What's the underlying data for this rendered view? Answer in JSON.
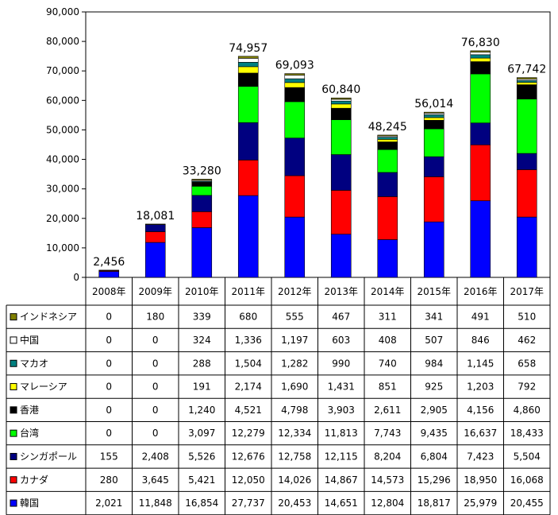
{
  "chart_data": {
    "type": "bar",
    "stacked": true,
    "categories": [
      "2008年",
      "2009年",
      "2010年",
      "2011年",
      "2012年",
      "2013年",
      "2014年",
      "2015年",
      "2016年",
      "2017年"
    ],
    "totals": [
      "2,456",
      "18,081",
      "33,280",
      "74,957",
      "69,093",
      "60,840",
      "48,245",
      "56,014",
      "76,830",
      "67,742"
    ],
    "ylim": [
      0,
      90000
    ],
    "yticks": [
      "0",
      "10,000",
      "20,000",
      "30,000",
      "40,000",
      "50,000",
      "60,000",
      "70,000",
      "80,000",
      "90,000"
    ],
    "grid": false,
    "legend": "data-table-left",
    "series": [
      {
        "name": "韓国",
        "color": "#0000FF",
        "values": [
          2021,
          11848,
          16854,
          27737,
          20453,
          14651,
          12804,
          18817,
          25979,
          20455
        ],
        "labels": [
          "2,021",
          "11,848",
          "16,854",
          "27,737",
          "20,453",
          "14,651",
          "12,804",
          "18,817",
          "25,979",
          "20,455"
        ]
      },
      {
        "name": "カナダ",
        "color": "#FF0000",
        "values": [
          280,
          3645,
          5421,
          12050,
          14026,
          14867,
          14573,
          15296,
          18950,
          16068
        ],
        "labels": [
          "280",
          "3,645",
          "5,421",
          "12,050",
          "14,026",
          "14,867",
          "14,573",
          "15,296",
          "18,950",
          "16,068"
        ]
      },
      {
        "name": "シンガポール",
        "color": "#000080",
        "values": [
          155,
          2408,
          5526,
          12676,
          12758,
          12115,
          8204,
          6804,
          7423,
          5504
        ],
        "labels": [
          "155",
          "2,408",
          "5,526",
          "12,676",
          "12,758",
          "12,115",
          "8,204",
          "6,804",
          "7,423",
          "5,504"
        ]
      },
      {
        "name": "台湾",
        "color": "#00FF00",
        "values": [
          0,
          0,
          3097,
          12279,
          12334,
          11813,
          7743,
          9435,
          16637,
          18433
        ],
        "labels": [
          "0",
          "0",
          "3,097",
          "12,279",
          "12,334",
          "11,813",
          "7,743",
          "9,435",
          "16,637",
          "18,433"
        ]
      },
      {
        "name": "香港",
        "color": "#000000",
        "values": [
          0,
          0,
          1240,
          4521,
          4798,
          3903,
          2611,
          2905,
          4156,
          4860
        ],
        "labels": [
          "0",
          "0",
          "1,240",
          "4,521",
          "4,798",
          "3,903",
          "2,611",
          "2,905",
          "4,156",
          "4,860"
        ]
      },
      {
        "name": "マレーシア",
        "color": "#FFFF00",
        "values": [
          0,
          0,
          191,
          2174,
          1690,
          1431,
          851,
          925,
          1203,
          792
        ],
        "labels": [
          "0",
          "0",
          "191",
          "2,174",
          "1,690",
          "1,431",
          "851",
          "925",
          "1,203",
          "792"
        ]
      },
      {
        "name": "マカオ",
        "color": "#008080",
        "values": [
          0,
          0,
          288,
          1504,
          1282,
          990,
          740,
          984,
          1145,
          658
        ],
        "labels": [
          "0",
          "0",
          "288",
          "1,504",
          "1,282",
          "990",
          "740",
          "984",
          "1,145",
          "658"
        ]
      },
      {
        "name": "中国",
        "color": "#FFFFFF",
        "values": [
          0,
          0,
          324,
          1336,
          1197,
          603,
          408,
          507,
          846,
          462
        ],
        "labels": [
          "0",
          "0",
          "324",
          "1,336",
          "1,197",
          "603",
          "408",
          "507",
          "846",
          "462"
        ]
      },
      {
        "name": "インドネシア",
        "color": "#808000",
        "values": [
          0,
          180,
          339,
          680,
          555,
          467,
          311,
          341,
          491,
          510
        ],
        "labels": [
          "0",
          "180",
          "339",
          "680",
          "555",
          "467",
          "311",
          "341",
          "491",
          "510"
        ]
      }
    ]
  }
}
